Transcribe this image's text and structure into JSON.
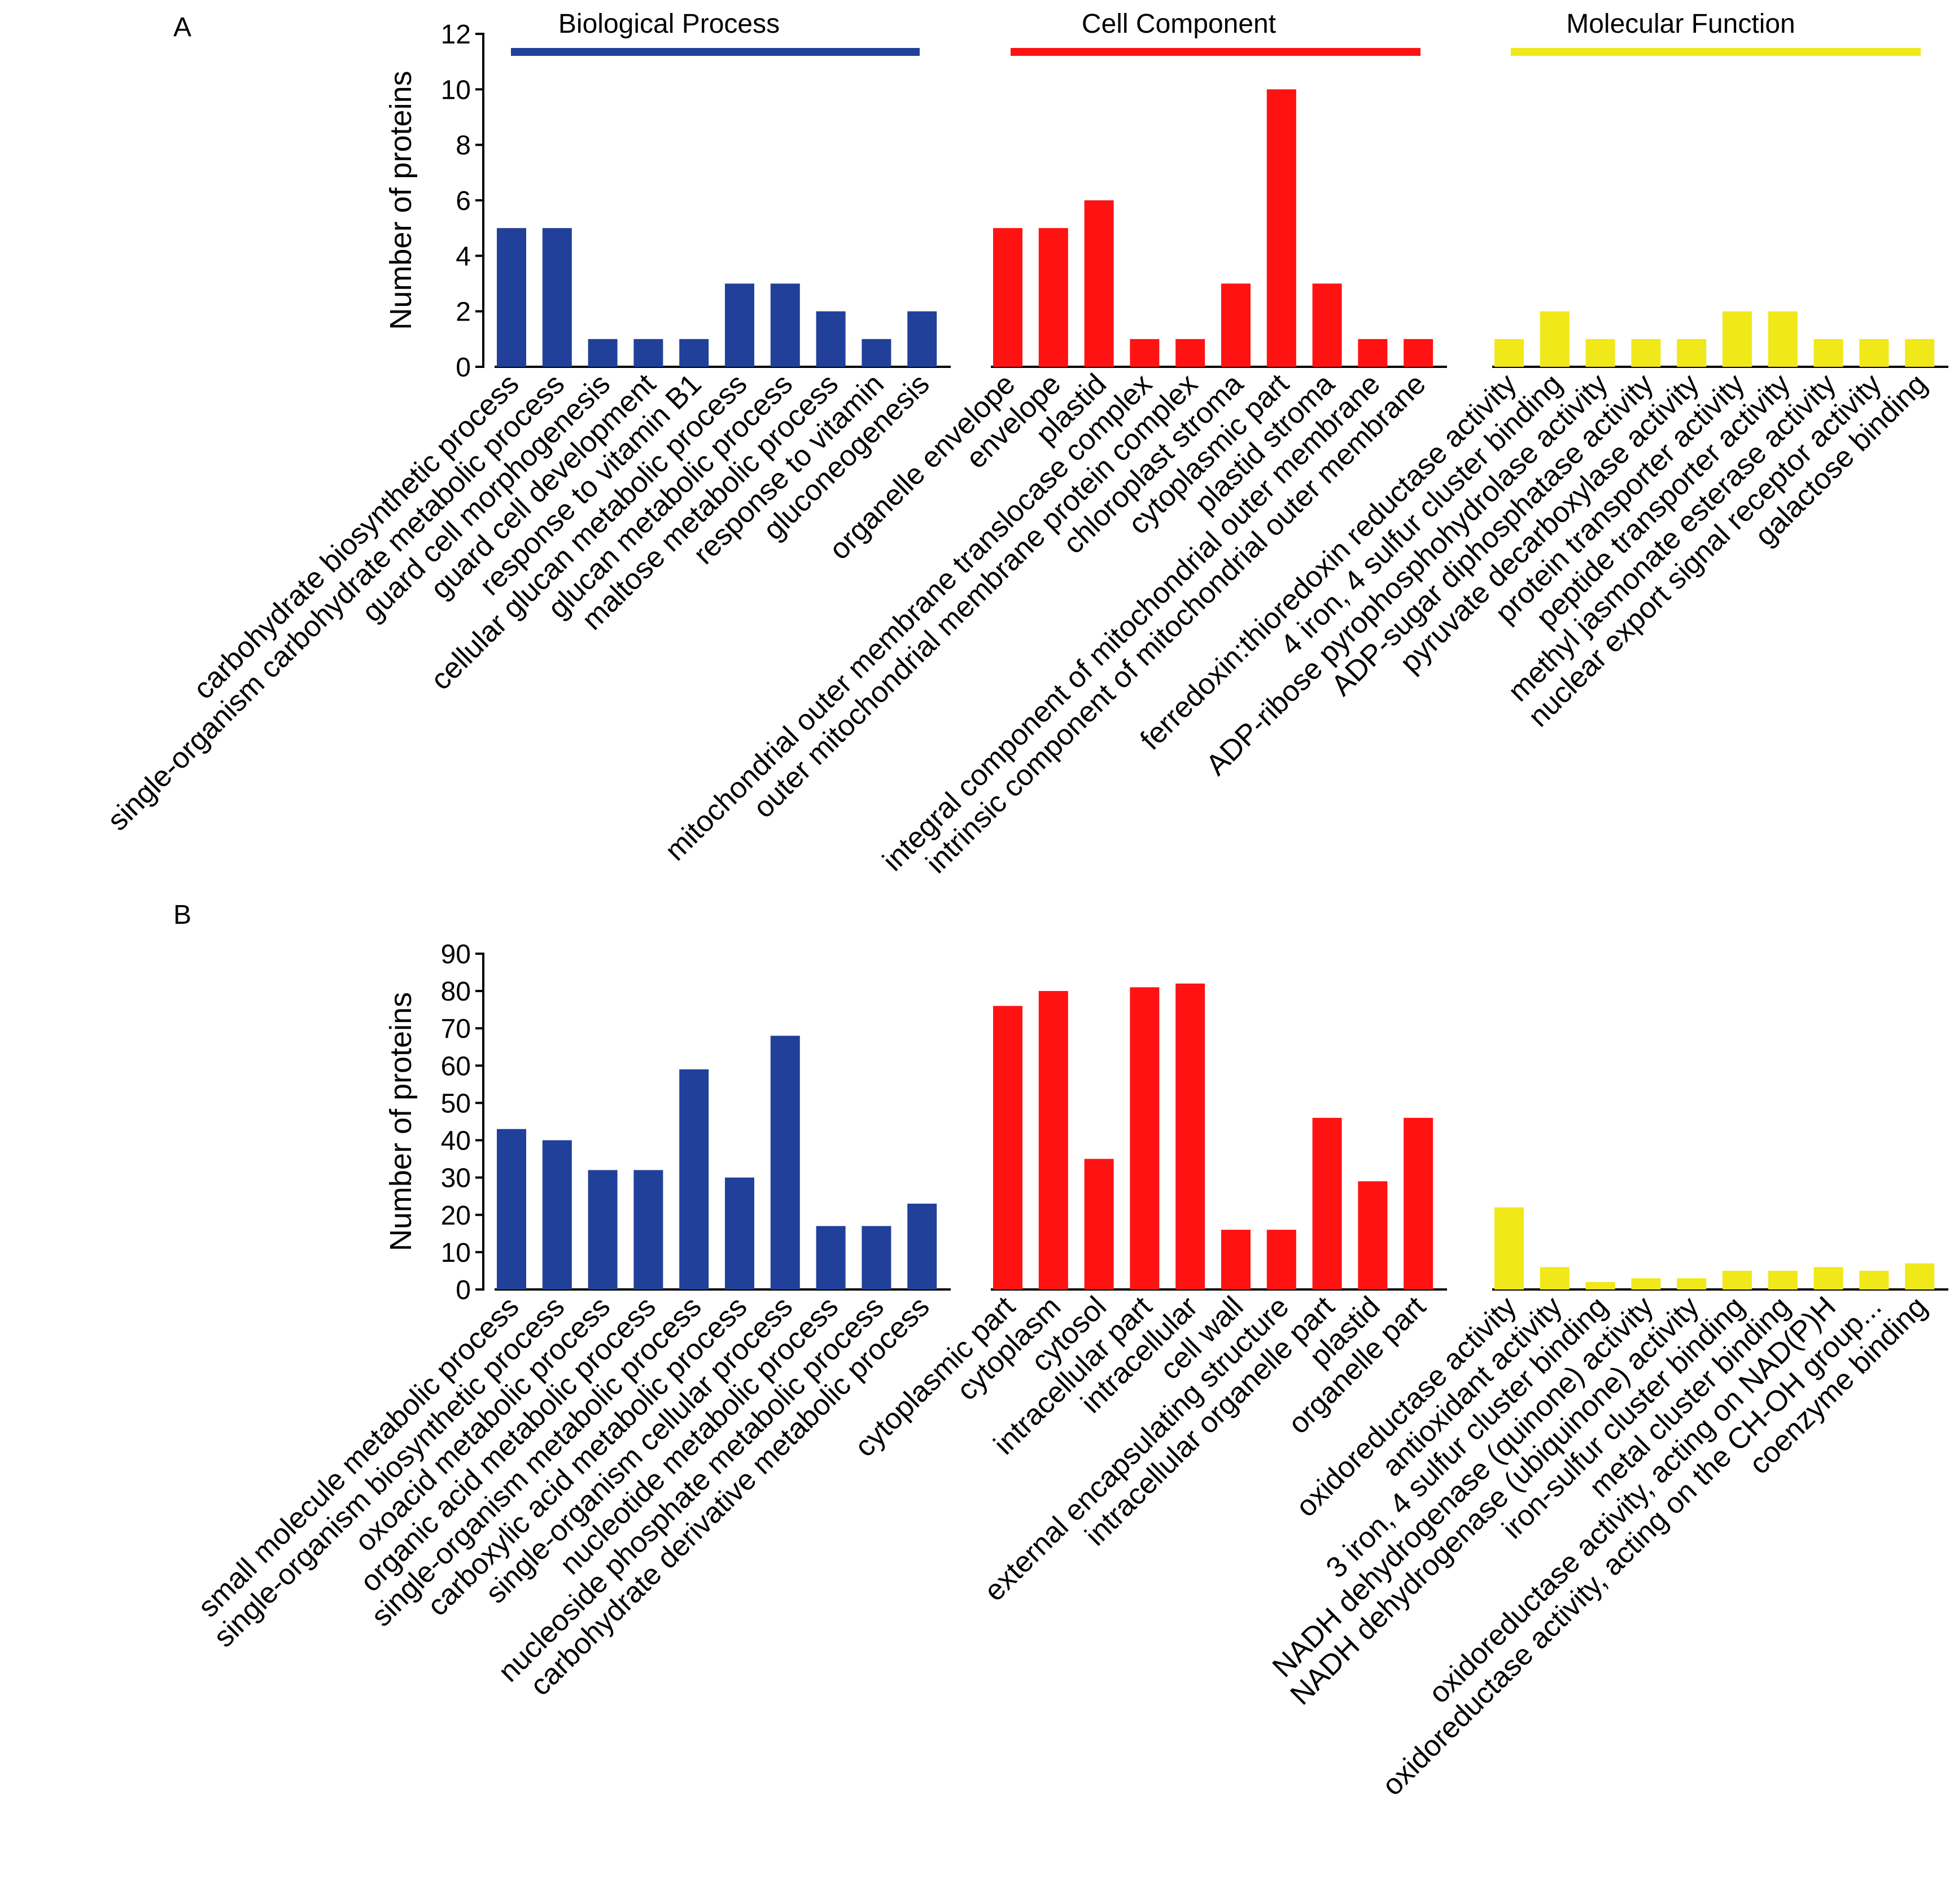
{
  "colors": {
    "biological_process": "#21409a",
    "cell_component": "#ff1212",
    "molecular_function": "#f0e818"
  },
  "legend": [
    {
      "key": "biological_process",
      "label": "Biological Process"
    },
    {
      "key": "cell_component",
      "label": "Cell Component"
    },
    {
      "key": "molecular_function",
      "label": "Molecular Function"
    }
  ],
  "chart_data": [
    {
      "panel": "A",
      "type": "bar",
      "ylabel": "Number of proteins",
      "ylim": [
        0,
        12
      ],
      "yticks": [
        0,
        2,
        4,
        6,
        8,
        10,
        12
      ],
      "groups": [
        {
          "name": "Biological Process",
          "color_key": "biological_process",
          "categories": [
            "carbohydrate biosynthetic process",
            "single-organism carbohydrate metabolic process",
            "guard cell morphogenesis",
            "guard cell development",
            "response to vitamin B1",
            "cellular glucan metabolic process",
            "glucan metabolic process",
            "maltose metabolic process",
            "response to vitamin",
            "gluconeogenesis"
          ],
          "values": [
            5,
            5,
            1,
            1,
            1,
            3,
            3,
            2,
            1,
            2
          ]
        },
        {
          "name": "Cell Component",
          "color_key": "cell_component",
          "categories": [
            "organelle envelope",
            "envelope",
            "plastid",
            "mitochondrial outer membrane translocase complex",
            "outer mitochondrial membrane protein complex",
            "chloroplast stroma",
            "cytoplasmic part",
            "plastid stroma",
            "integral component of mitochondrial outer membrane",
            "intrinsic component of mitochondrial outer membrane"
          ],
          "values": [
            5,
            5,
            6,
            1,
            1,
            3,
            10,
            3,
            1,
            1
          ]
        },
        {
          "name": "Molecular Function",
          "color_key": "molecular_function",
          "categories": [
            "ferredoxin:thioredoxin reductase activity",
            "4 iron, 4 sulfur cluster binding",
            "ADP-ribose pyrophosphohydrolase activity",
            "ADP-sugar diphosphatase activity",
            "pyruvate decarboxylase activity",
            "protein transporter activity",
            "peptide transporter activity",
            "methyl jasmonate esterase activity",
            "nuclear export signal receptor activity",
            "galactose binding"
          ],
          "values": [
            1,
            2,
            1,
            1,
            1,
            2,
            2,
            1,
            1,
            1
          ]
        }
      ]
    },
    {
      "panel": "B",
      "type": "bar",
      "ylabel": "Number of proteins",
      "ylim": [
        0,
        90
      ],
      "yticks": [
        0,
        10,
        20,
        30,
        40,
        50,
        60,
        70,
        80,
        90
      ],
      "groups": [
        {
          "name": "Biological Process",
          "color_key": "biological_process",
          "categories": [
            "small molecule metabolic process",
            "single-organism biosynthetic process",
            "oxoacid metabolic process",
            "organic acid metabolic process",
            "single-organism metabolic process",
            "carboxylic acid metabolic process",
            "single-organism cellular process",
            "nucleotide metabolic process",
            "nucleoside phosphate metabolic process",
            "carbohydrate derivative metabolic process"
          ],
          "values": [
            43,
            40,
            32,
            32,
            59,
            30,
            68,
            17,
            17,
            23
          ]
        },
        {
          "name": "Cell Component",
          "color_key": "cell_component",
          "categories": [
            "cytoplasmic part",
            "cytoplasm",
            "cytosol",
            "intracellular part",
            "intracellular",
            "cell wall",
            "external encapsulating structure",
            "intracellular organelle part",
            "plastid",
            "organelle part"
          ],
          "values": [
            76,
            80,
            35,
            81,
            82,
            16,
            16,
            46,
            29,
            46
          ]
        },
        {
          "name": "Molecular Function",
          "color_key": "molecular_function",
          "categories": [
            "oxidoreductase activity",
            "antioxidant activity",
            "3 iron, 4 sulfur cluster binding",
            "NADH dehydrogenase (quinone) activity",
            "NADH dehydrogenase (ubiquinone) activity",
            "iron-sulfur cluster binding",
            "metal cluster binding",
            "oxidoreductase activity, acting on NAD(P)H",
            "oxidoreductase activity, acting on the CH-OH group...",
            "coenzyme binding"
          ],
          "values": [
            22,
            6,
            2,
            3,
            3,
            5,
            5,
            6,
            5,
            7
          ]
        }
      ]
    }
  ]
}
